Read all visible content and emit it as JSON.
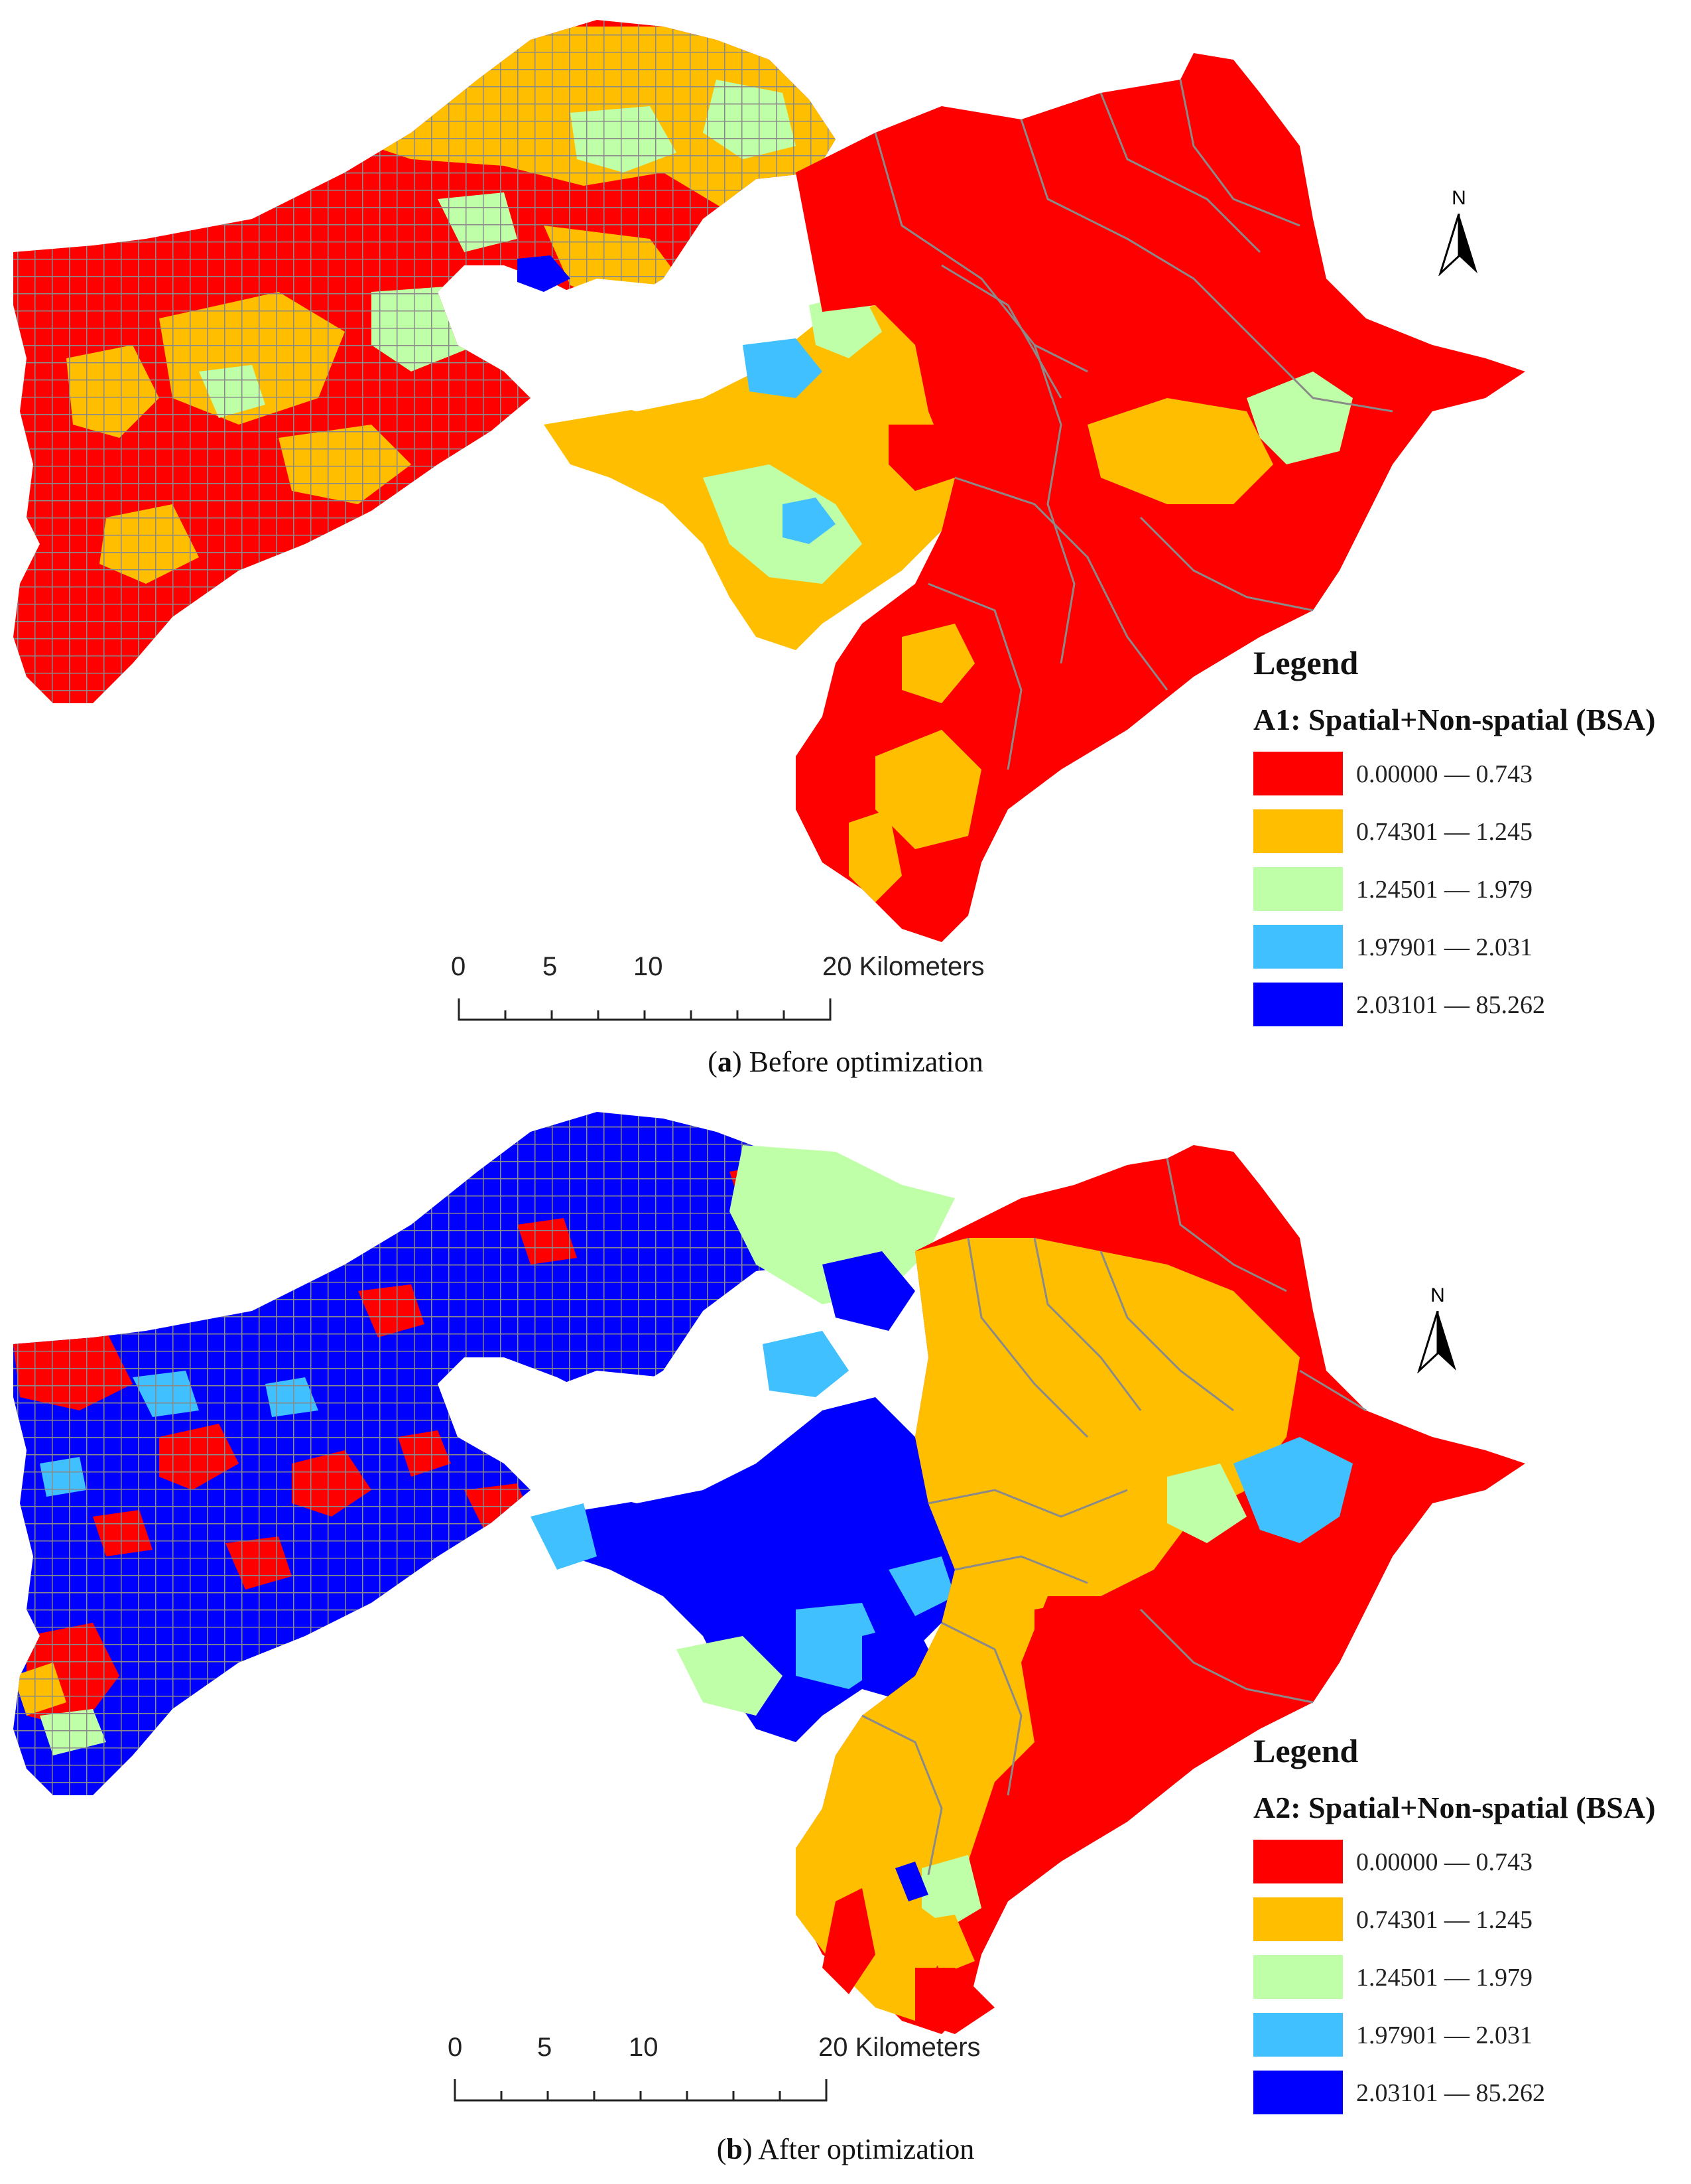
{
  "colors": {
    "class_1": "#ff0000",
    "class_2": "#ffbf00",
    "class_3": "#bfffa8",
    "class_4": "#40c0ff",
    "class_5": "#0000ff",
    "boundary": "#8a8a8a"
  },
  "north_arrow": {
    "label": "N",
    "icon": "north-arrow-icon"
  },
  "panels": [
    {
      "legend_title": "Legend",
      "legend_subtitle": "A1: Spatial+Non-spatial (BSA)",
      "legend_items": [
        {
          "label": "0.00000 — 0.743"
        },
        {
          "label": "0.74301 — 1.245"
        },
        {
          "label": "1.24501 — 1.979"
        },
        {
          "label": "1.97901 — 2.031"
        },
        {
          "label": "2.03101 — 85.262"
        }
      ],
      "scale_labels": [
        "0",
        "5",
        "10",
        "20 Kilometers"
      ],
      "caption_letter": "a",
      "caption_text": "Before optimization"
    },
    {
      "legend_title": "Legend",
      "legend_subtitle": "A2: Spatial+Non-spatial (BSA)",
      "legend_items": [
        {
          "label": "0.00000 — 0.743"
        },
        {
          "label": "0.74301 — 1.245"
        },
        {
          "label": "1.24501 — 1.979"
        },
        {
          "label": "1.97901 — 2.031"
        },
        {
          "label": "2.03101 — 85.262"
        }
      ],
      "scale_labels": [
        "0",
        "5",
        "10",
        "20 Kilometers"
      ],
      "caption_letter": "b",
      "caption_text": "After optimization"
    }
  ]
}
